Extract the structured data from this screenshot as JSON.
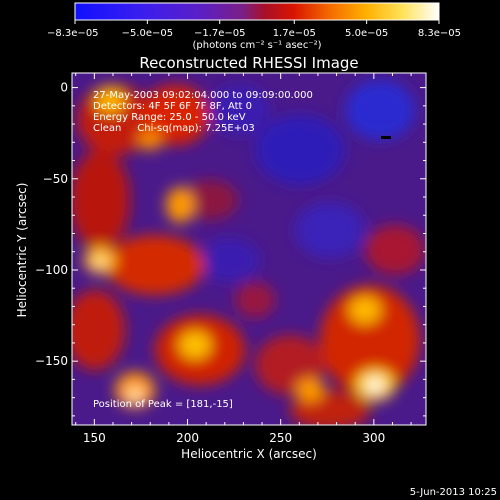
{
  "chart_data": {
    "type": "heatmap",
    "title": "Reconstructed RHESSI Image",
    "xlabel": "Heliocentric X (arcsec)",
    "ylabel": "Heliocentric Y (arcsec)",
    "xlim": [
      138,
      328
    ],
    "ylim": [
      -185,
      8
    ],
    "x_ticks": [
      150,
      200,
      250,
      300
    ],
    "y_ticks": [
      0,
      -50,
      -100,
      -150
    ],
    "x_tick_labels": [
      "150",
      "200",
      "250",
      "300"
    ],
    "y_tick_labels": [
      "0",
      "−50",
      "−100",
      "−150"
    ],
    "colorbar": {
      "colormap": "blue-purple-red-yellow-white",
      "range": [
        -8.3e-05,
        8.3e-05
      ],
      "tick_values": [
        -8.3e-05,
        -5e-05,
        -1.7e-05,
        1.7e-05,
        5e-05,
        8.3e-05
      ],
      "tick_labels": [
        "−8.3e−05",
        "−5.0e−05",
        "−1.7e−05",
        "1.7e−05",
        "5.0e−05",
        "8.3e−05"
      ],
      "units_label": "(photons cm⁻² s⁻¹ asec⁻²)"
    },
    "annotations": [
      "27-May-2003 09:02:04.000 to 09:09:00.000",
      "Detectors: 4F 5F 6F 7F 8F, Att 0",
      "Energy Range: 25.0 - 50.0 keV",
      "Clean     Chi-sq(map): 7.25E+03"
    ],
    "peak_label": "Position of Peak = [181,-15]",
    "peak": [
      181,
      -15
    ],
    "grid": false
  },
  "footer": {
    "date": "5-Jun-2013 10:25"
  },
  "colors": {
    "background": "#000000",
    "text": "#ffffff"
  }
}
